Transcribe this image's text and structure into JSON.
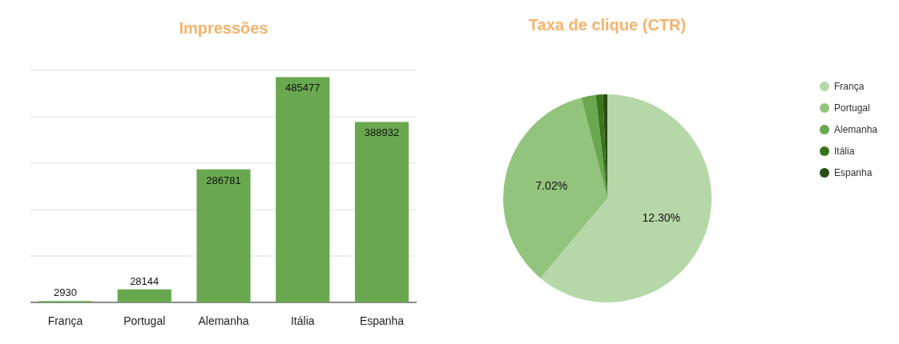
{
  "chart_data": [
    {
      "type": "bar",
      "title": "Impressões",
      "categories": [
        "França",
        "Portugal",
        "Alemanha",
        "Itália",
        "Espanha"
      ],
      "values": [
        2930,
        28144,
        286781,
        485477,
        388932
      ],
      "color": "#6aa84f",
      "ylim": [
        0,
        500000
      ],
      "yticks": [
        {
          "value": 0,
          "label": null
        },
        {
          "value": 100000,
          "label": null
        },
        {
          "value": 200000,
          "label": null
        },
        {
          "value": 300000,
          "label": null
        },
        {
          "value": 400000,
          "label": null
        },
        {
          "value": 500000,
          "label": null
        }
      ],
      "grid": "y",
      "data_labels": true,
      "tick_labels": "x"
    },
    {
      "type": "pie",
      "title": "Taxa de clique (CTR)",
      "categories": [
        "França",
        "Portugal",
        "Alemanha",
        "Itália",
        "Espanha"
      ],
      "values": [
        12.3,
        7.02,
        0.45,
        0.22,
        0.14
      ],
      "colors": [
        "#b6d7a8",
        "#93c47d",
        "#6aa84f",
        "#38761d",
        "#274e13"
      ],
      "value_labels": [
        "12.30%",
        "7.02%",
        null,
        null,
        null
      ],
      "legend": "right"
    }
  ]
}
